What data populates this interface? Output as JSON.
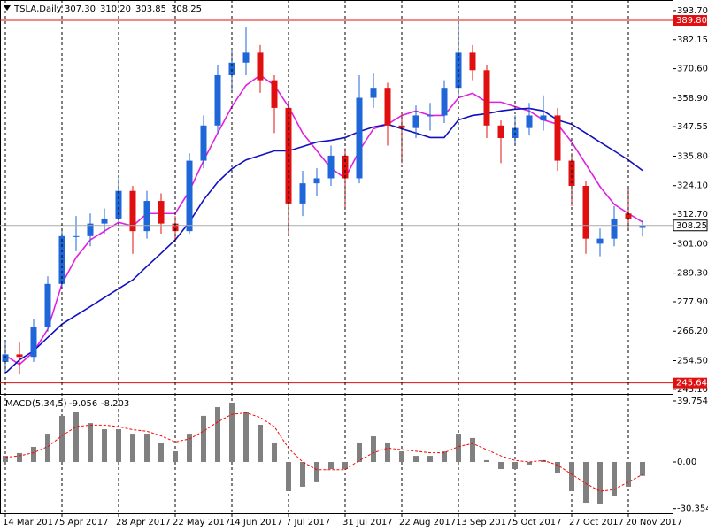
{
  "chart_data": [
    {
      "type": "candlestick",
      "title": "TSLA,Daily",
      "header_values": [
        {
          "value": 307.3,
          "label": "307.30"
        },
        {
          "value": 310.2,
          "label": "310.20"
        },
        {
          "value": 303.85,
          "label": "303.85"
        },
        {
          "value": 308.25,
          "label": "308.25"
        }
      ],
      "ohlc": [
        [
          254,
          262,
          250,
          257
        ],
        [
          257,
          262,
          249,
          256
        ],
        [
          256,
          271,
          254,
          268
        ],
        [
          268,
          288,
          266,
          285
        ],
        [
          285,
          307,
          283,
          304
        ],
        [
          304,
          312,
          298,
          304
        ],
        [
          304,
          313,
          300,
          309
        ],
        [
          309,
          315,
          305,
          311
        ],
        [
          311,
          327,
          309,
          322
        ],
        [
          322,
          324,
          297,
          306
        ],
        [
          306,
          322,
          303,
          318
        ],
        [
          318,
          321,
          305,
          309
        ],
        [
          309,
          312,
          302,
          306
        ],
        [
          306,
          337,
          305,
          334
        ],
        [
          334,
          352,
          331,
          348
        ],
        [
          348,
          372,
          345,
          368
        ],
        [
          368,
          378,
          362,
          373
        ],
        [
          373,
          387,
          368,
          377
        ],
        [
          377,
          380,
          361,
          366
        ],
        [
          366,
          368,
          345,
          355
        ],
        [
          355,
          357,
          305,
          317
        ],
        [
          317,
          330,
          312,
          325
        ],
        [
          325,
          331,
          320,
          327
        ],
        [
          327,
          340,
          324,
          336
        ],
        [
          336,
          339,
          315,
          327
        ],
        [
          327,
          368,
          325,
          359
        ],
        [
          359,
          369,
          355,
          363
        ],
        [
          363,
          365,
          340,
          348
        ],
        [
          348,
          353,
          333,
          347
        ],
        [
          347,
          356,
          343,
          352
        ],
        [
          352,
          357,
          346,
          352
        ],
        [
          352,
          366,
          349,
          363
        ],
        [
          363,
          389,
          360,
          377
        ],
        [
          377,
          380,
          366,
          370
        ],
        [
          370,
          372,
          343,
          348
        ],
        [
          348,
          350,
          333,
          343
        ],
        [
          343,
          352,
          340,
          347
        ],
        [
          347,
          357,
          344,
          352
        ],
        [
          350,
          360,
          346,
          352
        ],
        [
          352,
          355,
          330,
          334
        ],
        [
          334,
          337,
          316,
          324
        ],
        [
          324,
          326,
          297,
          303
        ],
        [
          301,
          307,
          296,
          303
        ],
        [
          303,
          316,
          300,
          311
        ],
        [
          313,
          323,
          306,
          311
        ],
        [
          307.3,
          310.2,
          303.85,
          308.25
        ]
      ],
      "up_color": "#1f66d8",
      "down_color": "#e01010",
      "ma": [
        {
          "color": "#e020e0",
          "values": [
            256.6,
            253,
            258,
            267,
            285,
            295.5,
            302.5,
            306,
            309.5,
            308,
            313,
            313,
            313,
            322,
            334,
            345,
            355.5,
            364,
            368,
            364,
            355.5,
            345,
            338,
            331,
            327,
            338,
            346.7,
            348.5,
            352,
            353.8,
            352,
            352,
            359,
            360.8,
            357.3,
            357.3,
            355.5,
            353.8,
            350.2,
            348.5,
            341.4,
            332.6,
            323.7,
            316.7,
            313,
            309.6
          ]
        },
        {
          "color": "#1010c0",
          "values": [
            249.5,
            254.8,
            258.4,
            263.7,
            269,
            272.5,
            276,
            279.6,
            283.1,
            286.6,
            292,
            297.2,
            302.5,
            309.6,
            318.4,
            325.5,
            330.8,
            334.3,
            336.1,
            337.9,
            337.9,
            339.6,
            341.4,
            342.1,
            343.2,
            345.6,
            347.4,
            348.5,
            346.7,
            345,
            343.2,
            343.2,
            350.2,
            352,
            352.7,
            353.8,
            354.5,
            354.8,
            353.8,
            350.2,
            348.5,
            345,
            341.4,
            337.9,
            334.3,
            330.1
          ]
        }
      ],
      "levels": [
        {
          "value": 389.8,
          "label": "389.80"
        },
        {
          "value": 245.64,
          "label": "245.64"
        }
      ],
      "level_color": "#e01010",
      "ylim": [
        241.3,
        397.9
      ],
      "yticks": [
        {
          "value": 393.7,
          "label": "393.70"
        },
        382.15,
        {
          "value": 370.6,
          "label": "370.60"
        },
        {
          "value": 358.9,
          "label": "358.90"
        },
        347.55,
        {
          "value": 335.8,
          "label": "335.80"
        },
        {
          "value": 324.1,
          "label": "324.10"
        },
        {
          "value": 312.7,
          "label": "312.70"
        },
        {
          "value": 301,
          "label": "301.00"
        },
        {
          "value": 289.3,
          "label": "289.30"
        },
        {
          "value": 277.9,
          "label": "277.90"
        },
        {
          "value": 266.2,
          "label": "266.20"
        },
        {
          "value": 254.5,
          "label": "254.50"
        },
        {
          "value": 243.1,
          "label": "243.10"
        }
      ]
    },
    {
      "type": "macd",
      "title": "MACD(5,34,5)",
      "histogram": [
        4,
        5.8,
        9.8,
        18.4,
        30,
        32.8,
        25.3,
        21.3,
        21.3,
        18.4,
        18.4,
        12.7,
        6.9,
        18.4,
        30,
        35.7,
        38.6,
        32.8,
        24.2,
        12.7,
        -19,
        -16.1,
        -13.2,
        -4.6,
        -4.6,
        12.7,
        16.7,
        12.7,
        6.9,
        4,
        4,
        6.9,
        18.4,
        15.6,
        1.2,
        -4.6,
        -4.6,
        -1.7,
        1.2,
        -7.5,
        -19,
        -26.5,
        -27.6,
        -21.9,
        -16.1,
        -9.056
      ],
      "signal": [
        3,
        4,
        6,
        10,
        17,
        23,
        24,
        24,
        23,
        21,
        20,
        17,
        13,
        15,
        20,
        26,
        31,
        32,
        29,
        23,
        9,
        0,
        -5,
        -5,
        -5,
        1,
        6,
        9,
        8,
        7,
        6,
        6,
        10,
        12,
        8,
        4,
        1,
        0,
        1,
        -2,
        -8,
        -14,
        -19,
        -18,
        -13,
        -8.203
      ],
      "histogram_color": "#808080",
      "signal_color": "#ff0000",
      "ylim": [
        -33.4,
        43.2
      ],
      "yticks": [
        39.754,
        {
          "value": 0,
          "label": "0.00"
        },
        -30.354
      ],
      "categories": [
        "14 Mar 2017",
        null,
        null,
        null,
        "5 Apr 2017",
        null,
        null,
        null,
        "28 Apr 2017",
        null,
        null,
        null,
        "22 May 2017",
        null,
        null,
        null,
        "14 Jun 2017",
        null,
        null,
        null,
        "7 Jul 2017",
        null,
        null,
        null,
        "31 Jul 2017",
        null,
        null,
        null,
        "22 Aug 2017",
        null,
        null,
        null,
        "13 Sep 2017",
        null,
        null,
        null,
        "5 Oct 2017",
        null,
        null,
        null,
        "27 Oct 2017",
        null,
        null,
        null,
        "20 Nov 2017",
        null
      ]
    }
  ]
}
